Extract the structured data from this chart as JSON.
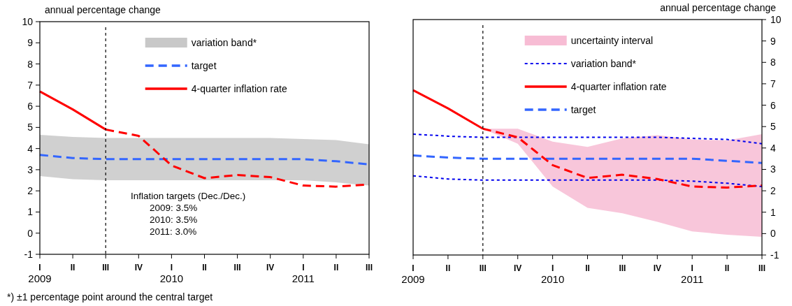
{
  "chart_data": [
    {
      "type": "line",
      "ylabel": "annual percentage change",
      "categories": [
        "I\n2009",
        "II",
        "III",
        "IV",
        "I\n2010",
        "II",
        "III",
        "IV",
        "I\n2011",
        "II",
        "III"
      ],
      "ylim": [
        -1,
        10
      ],
      "yticks": [
        -1,
        0,
        1,
        2,
        3,
        4,
        5,
        6,
        7,
        8,
        9,
        10
      ],
      "legend": "top right",
      "series": [
        {
          "name": "variation band*",
          "type": "area",
          "color": "#c8c8c8",
          "values": [
            null,
            null,
            null,
            null,
            null,
            null,
            null,
            null,
            null,
            null,
            null
          ],
          "upper": [
            4.65,
            4.55,
            4.5,
            4.5,
            4.5,
            4.5,
            4.5,
            4.5,
            4.45,
            4.4,
            4.2
          ],
          "lower": [
            2.7,
            2.55,
            2.5,
            2.5,
            2.5,
            2.5,
            2.5,
            2.5,
            2.5,
            2.4,
            2.25
          ]
        },
        {
          "name": "target",
          "color": "#3366ff",
          "line_style": "dashed",
          "values": [
            3.7,
            3.55,
            3.5,
            3.5,
            3.5,
            3.5,
            3.5,
            3.5,
            3.5,
            3.4,
            3.25
          ]
        },
        {
          "name": "4-quarter inflation rate",
          "color": "#ff0000",
          "line_style": "solid",
          "values": [
            6.7,
            5.85,
            4.9,
            null,
            null,
            null,
            null,
            null,
            null,
            null,
            null
          ]
        },
        {
          "color": "#ff0000",
          "line_style": "dashed",
          "values": [
            null,
            null,
            4.9,
            4.6,
            3.2,
            2.6,
            2.75,
            2.65,
            2.25,
            2.2,
            2.3
          ]
        }
      ],
      "annotations": [
        "Inflation targets (Dec./Dec.)",
        "2009: 3.5%",
        "2010: 3.5%",
        "2011: 3.0%",
        "*) ±1 percentage point around the central target"
      ]
    },
    {
      "type": "line",
      "y2label": "annual percentage change",
      "categories": [
        "I\n2009",
        "II",
        "III",
        "IV",
        "I\n2010",
        "II",
        "III",
        "IV",
        "I\n2011",
        "II",
        "III"
      ],
      "y2lim": [
        -1,
        10
      ],
      "y2ticks": [
        -1,
        0,
        1,
        2,
        3,
        4,
        5,
        6,
        7,
        8,
        9,
        10
      ],
      "legend": "top right",
      "series": [
        {
          "name": "uncertainty interval",
          "type": "area",
          "axis": "y2",
          "color": "#f7bcd4",
          "values": [
            null,
            null,
            null,
            null,
            null,
            null,
            null,
            null,
            null,
            null,
            null
          ],
          "upper": [
            null,
            null,
            4.9,
            4.9,
            4.3,
            4.05,
            4.45,
            4.6,
            4.4,
            4.35,
            4.65
          ],
          "lower": [
            null,
            null,
            4.9,
            4.2,
            2.2,
            1.2,
            0.95,
            0.55,
            0.1,
            -0.05,
            -0.15
          ]
        },
        {
          "name": "variation band*",
          "axis": "y2",
          "color": "#0000ee",
          "line_style": "dotted",
          "values": [
            4.65,
            4.55,
            4.5,
            4.5,
            4.5,
            4.5,
            4.5,
            4.5,
            4.45,
            4.4,
            4.2
          ]
        },
        {
          "axis": "y2",
          "color": "#0000ee",
          "line_style": "dotted",
          "values": [
            2.7,
            2.55,
            2.5,
            2.5,
            2.5,
            2.5,
            2.5,
            2.5,
            2.45,
            2.35,
            2.2
          ]
        },
        {
          "name": "4-quarter inflation rate",
          "axis": "y2",
          "color": "#ff0000",
          "line_style": "solid",
          "values": [
            6.7,
            5.85,
            4.9,
            null,
            null,
            null,
            null,
            null,
            null,
            null,
            null
          ]
        },
        {
          "name": "target",
          "axis": "y2",
          "color": "#3366ff",
          "line_style": "dashed",
          "values": [
            3.65,
            3.55,
            3.5,
            3.5,
            3.5,
            3.5,
            3.5,
            3.5,
            3.5,
            3.4,
            3.3
          ]
        },
        {
          "axis": "y2",
          "color": "#ff0000",
          "line_style": "dashed",
          "values": [
            null,
            null,
            4.9,
            4.5,
            3.2,
            2.6,
            2.75,
            2.55,
            2.2,
            2.15,
            2.25
          ]
        }
      ]
    }
  ]
}
